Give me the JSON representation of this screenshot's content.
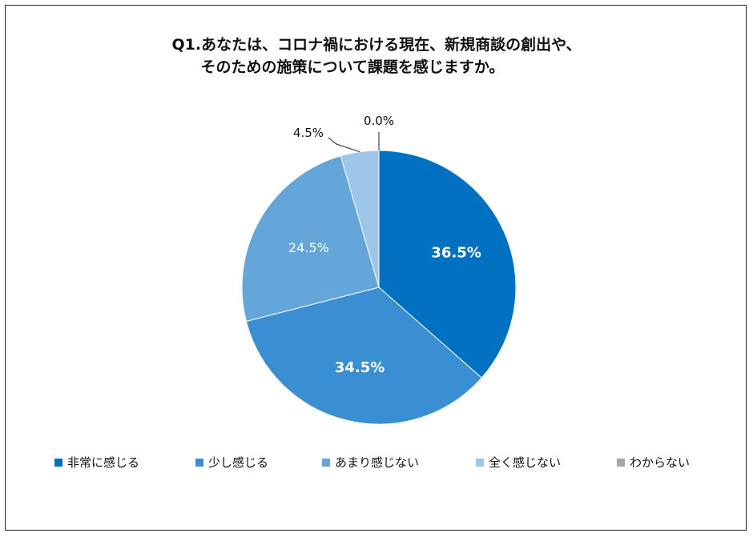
{
  "title": {
    "line1": "Q1.あなたは、コロナ禍における現在、新規商談の創出や、",
    "line2": "そのための施策について課題を感じますか。"
  },
  "chart_data": {
    "type": "pie",
    "categories": [
      "非常に感じる",
      "少し感じる",
      "あまり感じない",
      "全く感じない",
      "わからない"
    ],
    "values": [
      36.5,
      34.5,
      24.5,
      4.5,
      0.0
    ],
    "labels": [
      "36.5%",
      "34.5%",
      "24.5%",
      "4.5%",
      "0.0%"
    ],
    "colors": [
      "#0070c0",
      "#3a8ed2",
      "#64a6d9",
      "#9dc6e8",
      "#a6a6a6"
    ],
    "label_colors": [
      "#ffffff",
      "#ffffff",
      "#ffffff",
      "#111111",
      "#111111"
    ],
    "legend_position": "bottom"
  }
}
